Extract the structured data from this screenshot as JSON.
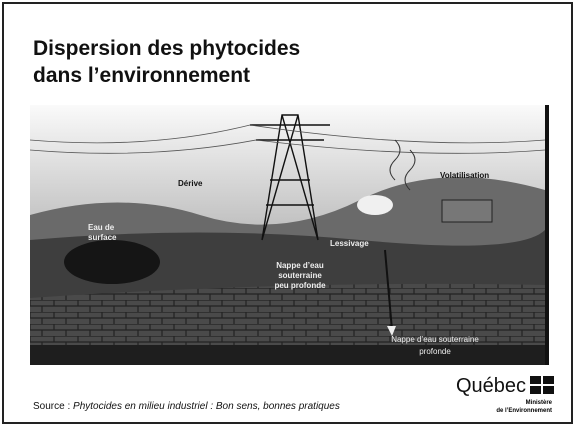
{
  "header": {
    "title": [
      "Dispersion des phytocides",
      "dans l’environnement"
    ]
  },
  "illustration": {
    "labels": {
      "drift": "Dérive",
      "volatilization": "Volatilisation",
      "surface_water": [
        "Eau de",
        "surface"
      ],
      "leaching": "Lessivage",
      "shallow_groundwater": [
        "Nappe d’eau",
        "souterraine",
        "peu profonde"
      ],
      "deep_groundwater": [
        "Nappe d’eau souterraine",
        "profonde"
      ]
    }
  },
  "footer": {
    "source_prefix": "Source : ",
    "source_title": "Phytocides en milieu industriel : Bon sens, bonnes pratiques",
    "logo": "Québec",
    "ministry": [
      "Ministère",
      "de l’Environnement"
    ]
  }
}
